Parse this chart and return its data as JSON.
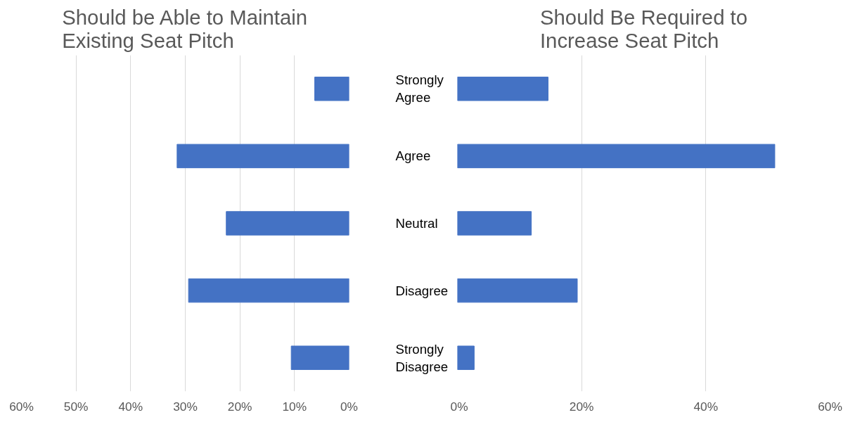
{
  "chart_data": [
    {
      "type": "bar",
      "orientation": "horizontal",
      "title": "Should be Able to Maintain Existing Seat Pitch",
      "categories": [
        "Strongly Agree",
        "Agree",
        "Neutral",
        "Disagree",
        "Strongly Disagree"
      ],
      "values": [
        6.3,
        31.5,
        22.5,
        29.4,
        10.6
      ],
      "color": "#4472c4",
      "xlim": [
        60,
        0
      ],
      "xticks": [
        {
          "value": 60,
          "label": "60%"
        },
        {
          "value": 50,
          "label": "50%"
        },
        {
          "value": 40,
          "label": "40%"
        },
        {
          "value": 30,
          "label": "30%"
        },
        {
          "value": 20,
          "label": "20%"
        },
        {
          "value": 10,
          "label": "10%"
        },
        {
          "value": 0,
          "label": "0%"
        }
      ],
      "grid": "x"
    },
    {
      "type": "bar",
      "orientation": "horizontal",
      "title": "Should Be Required to Increase Seat Pitch",
      "categories": [
        "Strongly Agree",
        "Agree",
        "Neutral",
        "Disagree",
        "Strongly Disagree"
      ],
      "values": [
        14.6,
        51.1,
        11.9,
        19.3,
        2.7
      ],
      "color": "#4472c4",
      "xlim": [
        0,
        60
      ],
      "xticks": [
        {
          "value": 0,
          "label": "0%"
        },
        {
          "value": 20,
          "label": "20%"
        },
        {
          "value": 40,
          "label": "40%"
        },
        {
          "value": 60,
          "label": "60%"
        }
      ],
      "grid": "x",
      "tick_labels": "x"
    }
  ]
}
